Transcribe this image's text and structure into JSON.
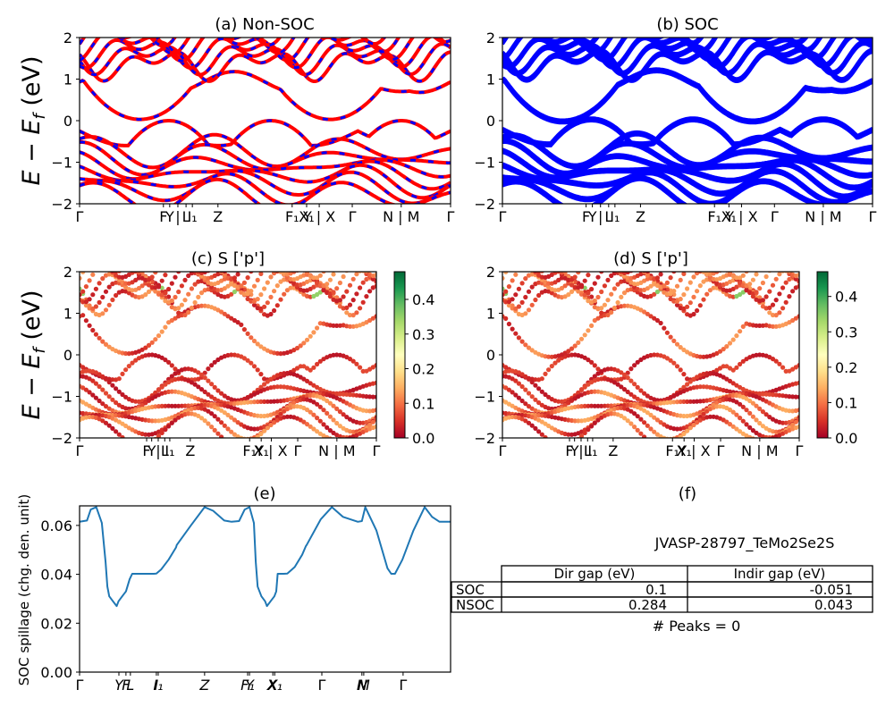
{
  "chart_data": [
    {
      "id": "a",
      "type": "line",
      "title": "(a) Non-SOC",
      "ylabel": "E − E_f (eV)",
      "ylim": [
        -2,
        2
      ],
      "yticks": [
        "−2",
        "−1",
        "0",
        "1",
        "2"
      ],
      "ytick_values": [
        -2,
        -1,
        0,
        1,
        2
      ],
      "kpath_ticks": [
        {
          "label": "Γ",
          "k": 0.0
        },
        {
          "label": "F",
          "k": 0.226
        },
        {
          "label": "Y",
          "k": 0.243
        },
        {
          "label": "|",
          "k": 0.265
        },
        {
          "label": "L",
          "k": 0.287
        },
        {
          "label": "I₁",
          "k": 0.304
        },
        {
          "label": "Z",
          "k": 0.373
        },
        {
          "label": "F₁",
          "k": 0.573
        },
        {
          "label": "X₁",
          "k": 0.612
        },
        {
          "label": "Y | X",
          "k": 0.646
        },
        {
          "label": "Γ",
          "k": 0.735
        },
        {
          "label": "N | M",
          "k": 0.867
        },
        {
          "label": "Γ",
          "k": 1.0
        }
      ],
      "series_style": "red solid with blue dashes (spin up / spin down)",
      "colors": {
        "up": "#0000ff",
        "down": "#ff0000"
      },
      "bands_description": "Valence band maximum at 0 eV near k≈0.24, 0.52, 0.867; conduction minimum ≈0.03 eV near k≈0.16 and 0.67"
    },
    {
      "id": "b",
      "type": "line",
      "title": "(b) SOC",
      "ylim": [
        -2,
        2
      ],
      "yticks": [
        "−2",
        "−1",
        "0",
        "1",
        "2"
      ],
      "ytick_values": [
        -2,
        -1,
        0,
        1,
        2
      ],
      "color": "#0000ff",
      "bands_description": "Conduction minimum ≈ -0.05 eV near k≈0.16 and 0.52; valence maximum 0 eV"
    },
    {
      "id": "c",
      "type": "scatter",
      "title": "(c)  S ['p']",
      "ylabel": "E − E_f (eV)",
      "ylim": [
        -2,
        2
      ],
      "yticks": [
        "−2",
        "−1",
        "0",
        "1",
        "2"
      ],
      "colorbar": {
        "cmap": "RdYlGn",
        "min": 0.0,
        "max": 0.48,
        "ticks": [
          "0.0",
          "0.1",
          "0.2",
          "0.3",
          "0.4"
        ],
        "tick_values": [
          0,
          0.1,
          0.2,
          0.3,
          0.4
        ]
      }
    },
    {
      "id": "d",
      "type": "scatter",
      "title": "(d) S ['p']",
      "ylim": [
        -2,
        2
      ],
      "yticks": [
        "−2",
        "−1",
        "0",
        "1",
        "2"
      ],
      "colorbar": {
        "cmap": "RdYlGn",
        "min": 0.0,
        "max": 0.47,
        "ticks": [
          "0.0",
          "0.1",
          "0.2",
          "0.3",
          "0.4"
        ],
        "tick_values": [
          0,
          0.1,
          0.2,
          0.3,
          0.4
        ]
      }
    },
    {
      "id": "e",
      "type": "line",
      "title": "(e)",
      "ylabel": "SOC spillage (chg. den. unit)",
      "ylim": [
        0,
        0.068
      ],
      "yticks": [
        "0.00",
        "0.02",
        "0.04",
        "0.06"
      ],
      "ytick_values": [
        0,
        0.02,
        0.04,
        0.06
      ],
      "color": "#1f77b4",
      "kpath_ticks": [
        {
          "label": "Γ",
          "k": 0.0
        },
        {
          "label": "Y",
          "k": 0.106
        },
        {
          "label": "F",
          "k": 0.125
        },
        {
          "label": "L",
          "k": 0.137
        },
        {
          "label": "I",
          "k": 0.207
        },
        {
          "label": "I₁",
          "k": 0.212
        },
        {
          "label": "Z",
          "k": 0.337
        },
        {
          "label": "F₁",
          "k": 0.453
        },
        {
          "label": "Y",
          "k": 0.458
        },
        {
          "label": "X",
          "k": 0.521
        },
        {
          "label": "X₁",
          "k": 0.526
        },
        {
          "label": "Γ",
          "k": 0.653
        },
        {
          "label": "N",
          "k": 0.761
        },
        {
          "label": "M",
          "k": 0.766
        },
        {
          "label": "Γ",
          "k": 0.872
        }
      ],
      "x": [
        0.0,
        0.02,
        0.03,
        0.045,
        0.06,
        0.07,
        0.075,
        0.08,
        0.09,
        0.1,
        0.105,
        0.115,
        0.125,
        0.135,
        0.142,
        0.15,
        0.2,
        0.207,
        0.22,
        0.24,
        0.26,
        0.262,
        0.3,
        0.337,
        0.36,
        0.39,
        0.41,
        0.43,
        0.445,
        0.458,
        0.47,
        0.475,
        0.48,
        0.49,
        0.5,
        0.505,
        0.515,
        0.525,
        0.53,
        0.534,
        0.55,
        0.56,
        0.58,
        0.6,
        0.61,
        0.612,
        0.65,
        0.653,
        0.68,
        0.71,
        0.75,
        0.761,
        0.77,
        0.8,
        0.83,
        0.84,
        0.85,
        0.87,
        0.9,
        0.93,
        0.95,
        0.97,
        1.0
      ],
      "y": [
        0.0615,
        0.062,
        0.0665,
        0.0675,
        0.061,
        0.045,
        0.035,
        0.031,
        0.029,
        0.027,
        0.029,
        0.031,
        0.033,
        0.038,
        0.0402,
        0.0402,
        0.0402,
        0.0403,
        0.042,
        0.046,
        0.051,
        0.052,
        0.06,
        0.0675,
        0.066,
        0.062,
        0.0615,
        0.0618,
        0.0665,
        0.0675,
        0.061,
        0.045,
        0.035,
        0.031,
        0.029,
        0.027,
        0.029,
        0.031,
        0.033,
        0.0402,
        0.0402,
        0.0403,
        0.043,
        0.048,
        0.0515,
        0.052,
        0.0625,
        0.063,
        0.0675,
        0.0635,
        0.0615,
        0.0618,
        0.0675,
        0.058,
        0.0425,
        0.0402,
        0.0402,
        0.046,
        0.058,
        0.0675,
        0.0635,
        0.0615,
        0.0615
      ]
    }
  ],
  "panel_f": {
    "title": "(f)",
    "material_id": "JVASP-28797_TeMo2Se2S",
    "table": {
      "columns": [
        "",
        "Dir gap (eV)",
        "Indir gap (eV)"
      ],
      "rows": [
        {
          "label": "SOC",
          "dir_gap": "0.1",
          "indir_gap": "-0.051"
        },
        {
          "label": "NSOC",
          "dir_gap": "0.284",
          "indir_gap": "0.043"
        }
      ]
    },
    "peaks_text": "# Peaks = 0"
  }
}
